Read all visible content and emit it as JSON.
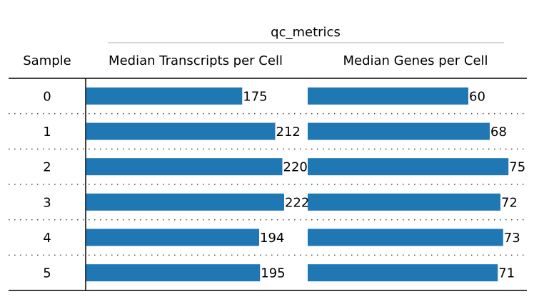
{
  "chart_data": {
    "type": "table",
    "group_label": "qc_metrics",
    "row_header": "Sample",
    "rows": [
      "0",
      "1",
      "2",
      "3",
      "4",
      "5"
    ],
    "columns": [
      {
        "name": "Median Transcripts per Cell",
        "values": [
          175,
          212,
          220,
          222,
          194,
          195
        ],
        "xlim": [
          0,
          240
        ]
      },
      {
        "name": "Median Genes per Cell",
        "values": [
          60,
          68,
          75,
          72,
          73,
          71
        ],
        "xlim": [
          0,
          80
        ]
      }
    ],
    "bar_color": "#1f77b4",
    "row_separator": "dotted",
    "grid": false
  }
}
